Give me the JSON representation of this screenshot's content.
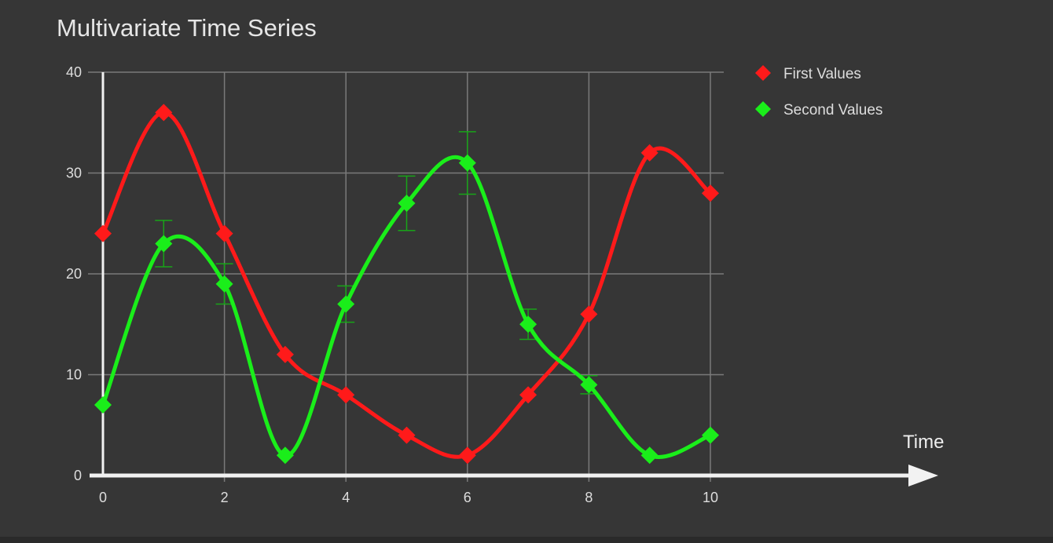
{
  "chart_data": {
    "type": "line",
    "title": "Multivariate Time Series",
    "xlabel": "Time",
    "ylabel": "",
    "x": [
      0,
      1,
      2,
      3,
      4,
      5,
      6,
      7,
      8,
      9,
      10
    ],
    "xlim": [
      0,
      10
    ],
    "ylim": [
      0,
      40
    ],
    "xticks": [
      0,
      2,
      4,
      6,
      8,
      10
    ],
    "yticks": [
      0,
      10,
      20,
      30,
      40
    ],
    "grid": true,
    "legend_position": "top-right",
    "series": [
      {
        "name": "First Values",
        "color": "#ff1a1a",
        "marker": "diamond",
        "values": [
          24,
          36,
          24,
          12,
          8,
          4,
          2,
          8,
          16,
          32,
          28
        ]
      },
      {
        "name": "Second Values",
        "color": "#1aee1a",
        "marker": "diamond",
        "values": [
          7,
          23,
          19,
          2,
          17,
          27,
          31,
          15,
          9,
          2,
          4
        ],
        "error_bars": [
          0,
          2.3,
          2,
          0,
          1.8,
          2.7,
          3.1,
          1.5,
          0.9,
          0,
          0
        ]
      }
    ]
  }
}
